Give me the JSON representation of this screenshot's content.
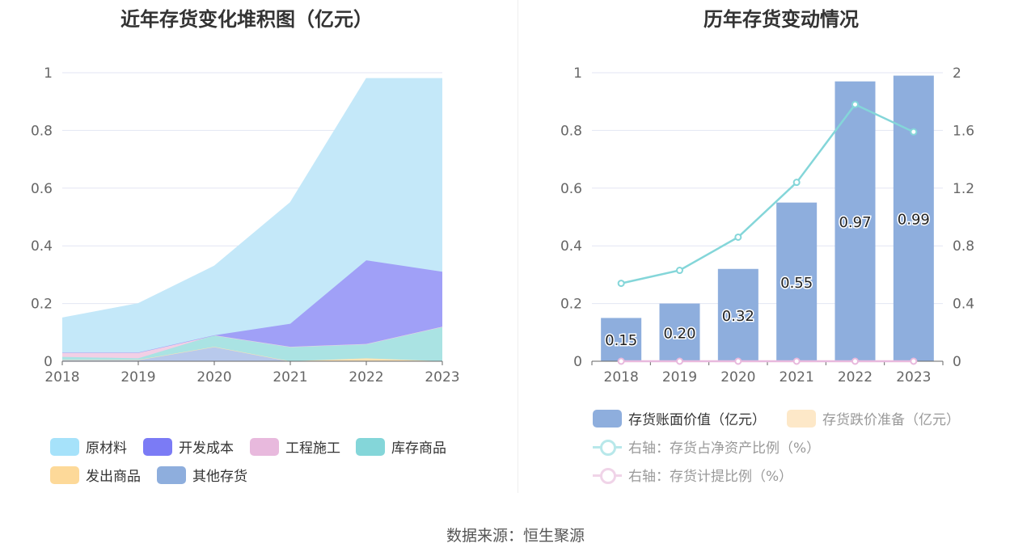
{
  "left_title": "近年存货变化堆积图（亿元）",
  "right_title": "历年存货变动情况",
  "source": "数据来源：恒生聚源",
  "chart_data": [
    {
      "type": "area",
      "stacked": true,
      "title": "近年存货变化堆积图（亿元）",
      "x": [
        "2018",
        "2019",
        "2020",
        "2021",
        "2022",
        "2023"
      ],
      "ylim": [
        0,
        1
      ],
      "y_ticks": [
        "0",
        "0.2",
        "0.4",
        "0.6",
        "0.8",
        "1"
      ],
      "grid": true,
      "legend_position": "bottom",
      "series": [
        {
          "name": "其他存货",
          "color": "#8eaedd",
          "fill": "#b8c9ec",
          "values": [
            0.005,
            0.005,
            0.05,
            0.0,
            0.0,
            0.0
          ]
        },
        {
          "name": "发出商品",
          "color": "#fdd999",
          "fill": "#fde4b5",
          "values": [
            0.0,
            0.0,
            0.0,
            0.0,
            0.01,
            0.0
          ]
        },
        {
          "name": "库存商品",
          "color": "#84d6d9",
          "fill": "#aae3e3",
          "values": [
            0.01,
            0.005,
            0.04,
            0.05,
            0.05,
            0.12
          ]
        },
        {
          "name": "工程施工",
          "color": "#e8b9dd",
          "fill": "#f2cfe5",
          "values": [
            0.015,
            0.02,
            0.0,
            0.0,
            0.0,
            0.0
          ]
        },
        {
          "name": "开发成本",
          "color": "#7b7bf5",
          "fill": "#a0a0f7",
          "values": [
            0.0,
            0.0,
            0.0,
            0.08,
            0.29,
            0.19
          ]
        },
        {
          "name": "原材料",
          "color": "#a6e2fa",
          "fill": "#c4e8f9",
          "values": [
            0.12,
            0.17,
            0.24,
            0.42,
            0.63,
            0.67
          ]
        }
      ],
      "legend_order": [
        "原材料",
        "开发成本",
        "工程施工",
        "库存商品",
        "发出商品",
        "其他存货"
      ]
    },
    {
      "type": "bar",
      "title": "历年存货变动情况",
      "categories": [
        "2018",
        "2019",
        "2020",
        "2021",
        "2022",
        "2023"
      ],
      "ylim": [
        0,
        1
      ],
      "y_ticks": [
        "0",
        "0.2",
        "0.4",
        "0.6",
        "0.8",
        "1"
      ],
      "y2lim": [
        0,
        2
      ],
      "y2_ticks": [
        "0",
        "0.4",
        "0.8",
        "1.2",
        "1.6",
        "2"
      ],
      "grid": true,
      "legend_position": "bottom",
      "series": [
        {
          "name": "存货账面价值（亿元）",
          "type": "bar",
          "axis": "left",
          "color": "#8eaedd",
          "values": [
            0.15,
            0.2,
            0.32,
            0.55,
            0.97,
            0.99
          ],
          "labels": [
            "0.15",
            "0.20",
            "0.32",
            "0.55",
            "0.97",
            "0.99"
          ]
        },
        {
          "name": "存货跌价准备（亿元）",
          "type": "bar",
          "axis": "left",
          "color": "#fde8c8",
          "values": [
            0,
            0,
            0,
            0,
            0,
            0
          ]
        },
        {
          "name": "右轴：存货占净资产比例（%）",
          "type": "line",
          "axis": "right",
          "color": "#84d6d9",
          "values": [
            0.54,
            0.63,
            0.86,
            1.24,
            1.78,
            1.59
          ]
        },
        {
          "name": "右轴：存货计提比例（%）",
          "type": "line",
          "axis": "right",
          "color": "#e8b9dd",
          "values": [
            0,
            0,
            0,
            0,
            0,
            0
          ]
        }
      ]
    }
  ]
}
